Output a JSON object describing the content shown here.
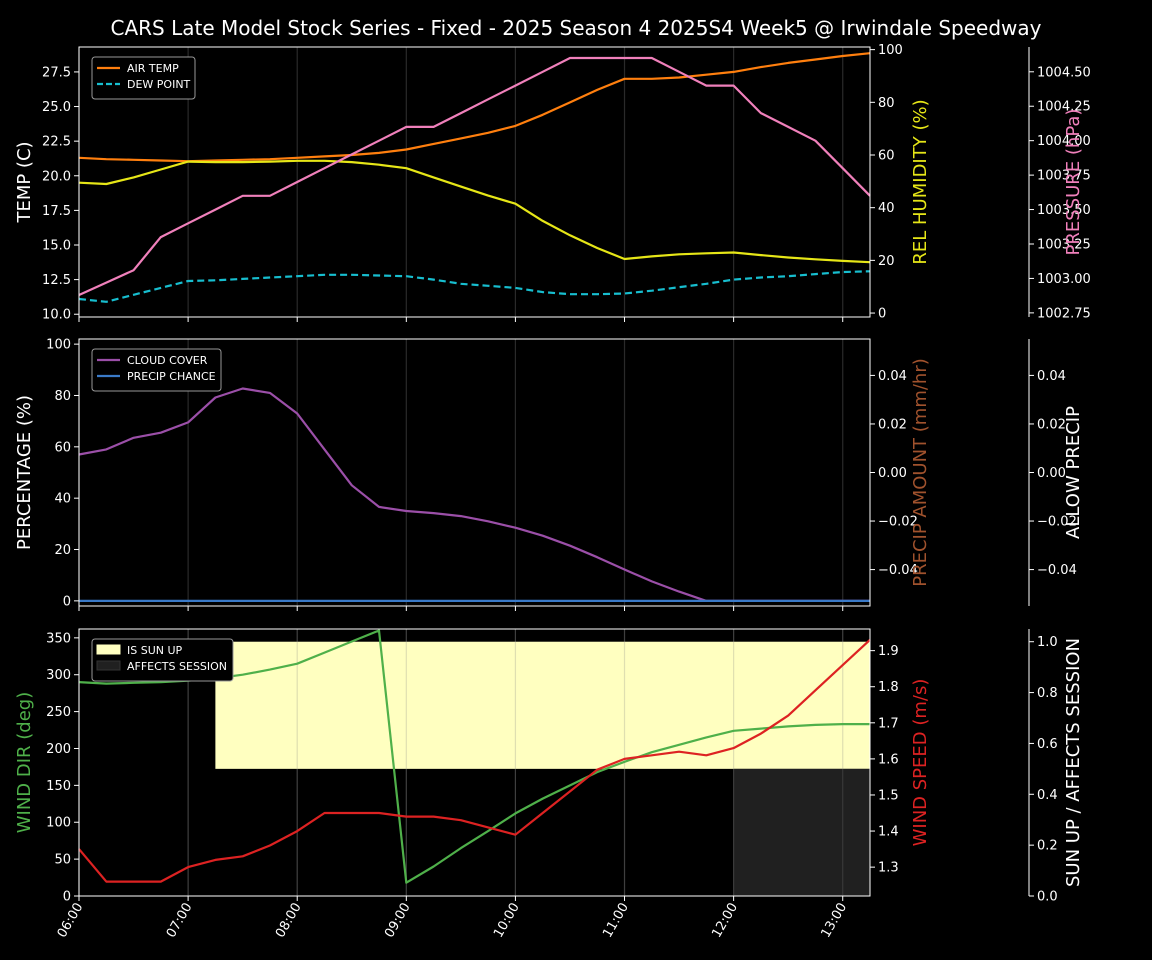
{
  "chart_data": [
    {
      "type": "line",
      "title": "CARS Late Model Stock Series - Fixed - 2025 Season 4 2025S4 Week5 @ Irwindale Speedway",
      "x_ticks": [
        "06:00",
        "07:00",
        "08:00",
        "09:00",
        "10:00",
        "11:00",
        "12:00",
        "13:00"
      ],
      "x_range": [
        "06:00",
        "13:15"
      ],
      "grid": "vertical-hourly",
      "legend_position": "top-left",
      "axes": [
        {
          "id": "temp",
          "label": "TEMP (C)",
          "side": "left",
          "color": "#ffffff",
          "range": [
            9.8,
            29.3
          ],
          "ticks": [
            "10.0",
            "12.5",
            "15.0",
            "17.5",
            "20.0",
            "22.5",
            "25.0",
            "27.5"
          ]
        },
        {
          "id": "rh",
          "label": "REL HUMIDITY (%)",
          "side": "right",
          "color": "#e6e617",
          "range": [
            -1.5,
            101
          ],
          "ticks": [
            "0",
            "20",
            "40",
            "60",
            "80",
            "100"
          ]
        },
        {
          "id": "pres",
          "label": "PRESSURE (hPa)",
          "side": "right-outer",
          "color": "#f080bb",
          "range": [
            1002.72,
            1004.68
          ],
          "ticks": [
            "1002.75",
            "1003.00",
            "1003.25",
            "1003.50",
            "1003.75",
            "1004.00",
            "1004.25",
            "1004.50"
          ]
        }
      ],
      "series": [
        {
          "name": "AIR TEMP",
          "axis": "temp",
          "color": "#ff7f0e",
          "style": "solid",
          "legend": true,
          "x": [
            "06:00",
            "06:15",
            "06:30",
            "06:45",
            "07:00",
            "07:15",
            "07:30",
            "07:45",
            "08:00",
            "08:15",
            "08:30",
            "08:45",
            "09:00",
            "09:15",
            "09:30",
            "09:45",
            "10:00",
            "10:15",
            "10:30",
            "10:45",
            "11:00",
            "11:15",
            "11:30",
            "11:45",
            "12:00",
            "12:15",
            "12:30",
            "12:45",
            "13:00",
            "13:15"
          ],
          "y": [
            21.3,
            21.2,
            21.15,
            21.1,
            21.05,
            21.1,
            21.15,
            21.2,
            21.3,
            21.4,
            21.5,
            21.65,
            21.9,
            22.3,
            22.7,
            23.1,
            23.6,
            24.4,
            25.3,
            26.2,
            27.0,
            27.0,
            27.1,
            27.3,
            27.5,
            27.85,
            28.15,
            28.4,
            28.65,
            28.85
          ]
        },
        {
          "name": "DEW POINT",
          "axis": "temp",
          "color": "#17becf",
          "style": "dashed",
          "legend": true,
          "x": [
            "06:00",
            "06:15",
            "06:30",
            "06:45",
            "07:00",
            "07:15",
            "07:30",
            "07:45",
            "08:00",
            "08:15",
            "08:30",
            "08:45",
            "09:00",
            "09:15",
            "09:30",
            "09:45",
            "10:00",
            "10:15",
            "10:30",
            "10:45",
            "11:00",
            "11:15",
            "11:30",
            "11:45",
            "12:00",
            "12:15",
            "12:30",
            "12:45",
            "13:00",
            "13:15"
          ],
          "y": [
            11.1,
            10.9,
            11.4,
            11.9,
            12.4,
            12.45,
            12.55,
            12.65,
            12.75,
            12.85,
            12.85,
            12.8,
            12.75,
            12.5,
            12.2,
            12.05,
            11.9,
            11.6,
            11.45,
            11.45,
            11.5,
            11.7,
            11.95,
            12.2,
            12.5,
            12.65,
            12.75,
            12.9,
            13.05,
            13.1
          ]
        },
        {
          "name": "REL HUMIDITY",
          "axis": "rh",
          "color": "#e6e617",
          "style": "solid",
          "legend": false,
          "x": [
            "06:00",
            "06:15",
            "06:30",
            "06:45",
            "07:00",
            "07:15",
            "07:30",
            "07:45",
            "08:00",
            "08:15",
            "08:30",
            "08:45",
            "09:00",
            "09:15",
            "09:30",
            "09:45",
            "10:00",
            "10:15",
            "10:30",
            "10:45",
            "11:00",
            "11:15",
            "11:30",
            "11:45",
            "12:00",
            "12:15",
            "12:30",
            "12:45",
            "13:00",
            "13:15"
          ],
          "y": [
            49.5,
            49,
            51.5,
            54.5,
            57.5,
            57.3,
            57.3,
            57.5,
            57.8,
            57.8,
            57.3,
            56.3,
            55,
            51.5,
            48,
            44.6,
            41.5,
            35,
            29.5,
            24.7,
            20.5,
            21.5,
            22.3,
            22.7,
            23,
            22,
            21.1,
            20.4,
            19.8,
            19.3
          ]
        },
        {
          "name": "PRESSURE",
          "axis": "pres",
          "color": "#f080bb",
          "style": "solid",
          "legend": false,
          "x": [
            "06:00",
            "06:15",
            "06:30",
            "06:45",
            "07:00",
            "07:15",
            "07:30",
            "07:45",
            "08:00",
            "08:15",
            "08:30",
            "08:45",
            "09:00",
            "09:15",
            "09:30",
            "09:45",
            "10:00",
            "10:15",
            "10:30",
            "10:45",
            "11:00",
            "11:15",
            "11:30",
            "11:45",
            "12:00",
            "12:15",
            "12:30",
            "12:45",
            "13:00",
            "13:15"
          ],
          "y": [
            1002.88,
            1002.97,
            1003.06,
            1003.3,
            1003.4,
            1003.5,
            1003.6,
            1003.6,
            1003.7,
            1003.8,
            1003.9,
            1004.0,
            1004.1,
            1004.1,
            1004.2,
            1004.3,
            1004.4,
            1004.5,
            1004.6,
            1004.6,
            1004.6,
            1004.6,
            1004.5,
            1004.4,
            1004.4,
            1004.2,
            1004.1,
            1004.0,
            1003.8,
            1003.6
          ]
        }
      ]
    },
    {
      "type": "line",
      "x_range": [
        "06:00",
        "13:15"
      ],
      "legend_position": "top-left",
      "axes": [
        {
          "id": "pct",
          "label": "PERCENTAGE (%)",
          "side": "left",
          "color": "#ffffff",
          "range": [
            -2,
            102
          ],
          "ticks": [
            "0",
            "20",
            "40",
            "60",
            "80",
            "100"
          ]
        },
        {
          "id": "precip",
          "label": "PRECIP AMOUNT (mm/hr)",
          "side": "right",
          "color": "#a0522d",
          "range": [
            -0.055,
            0.055
          ],
          "ticks": [
            "−0.04",
            "−0.02",
            "0.00",
            "0.02",
            "0.04"
          ]
        },
        {
          "id": "allow",
          "label": "ALLOW PRECIP",
          "side": "right-outer",
          "color": "#ffffff",
          "range": [
            -0.055,
            0.055
          ],
          "ticks": [
            "−0.04",
            "−0.02",
            "0.00",
            "0.02",
            "0.04"
          ]
        }
      ],
      "series": [
        {
          "name": "CLOUD COVER",
          "axis": "pct",
          "color": "#9b4fa8",
          "style": "solid",
          "legend": true,
          "x": [
            "06:00",
            "06:15",
            "06:30",
            "06:45",
            "07:00",
            "07:15",
            "07:30",
            "07:45",
            "08:00",
            "08:15",
            "08:30",
            "08:45",
            "09:00",
            "09:15",
            "09:30",
            "09:45",
            "10:00",
            "10:15",
            "10:30",
            "10:45",
            "11:00",
            "11:15",
            "11:30",
            "11:45",
            "12:00",
            "12:15",
            "12:30",
            "12:45",
            "13:00",
            "13:15"
          ],
          "y": [
            57,
            59,
            63.5,
            65.5,
            69.5,
            79.2,
            82.7,
            81,
            73,
            59,
            45,
            36.6,
            35,
            34.2,
            33,
            31,
            28.5,
            25.4,
            21.5,
            17,
            12.2,
            7.6,
            3.6,
            0,
            0,
            0,
            0,
            0,
            0,
            0
          ]
        },
        {
          "name": "PRECIP CHANCE",
          "axis": "pct",
          "color": "#3a7ac8",
          "style": "solid",
          "legend": true,
          "x": [
            "06:00",
            "13:15"
          ],
          "y": [
            0,
            0
          ]
        }
      ]
    },
    {
      "type": "line",
      "x_range": [
        "06:00",
        "13:15"
      ],
      "x_ticks": [
        "06:00",
        "07:00",
        "08:00",
        "09:00",
        "10:00",
        "11:00",
        "12:00",
        "13:00"
      ],
      "legend_position": "top-left",
      "axes": [
        {
          "id": "dir",
          "label": "WIND DIR (deg)",
          "side": "left",
          "color": "#4fb04a",
          "range": [
            0,
            362
          ],
          "ticks": [
            "0",
            "50",
            "100",
            "150",
            "200",
            "250",
            "300",
            "350"
          ]
        },
        {
          "id": "spd",
          "label": "WIND SPEED (m/s)",
          "side": "right",
          "color": "#dd2222",
          "range": [
            1.22,
            1.96
          ],
          "ticks": [
            "1.3",
            "1.4",
            "1.5",
            "1.6",
            "1.7",
            "1.8",
            "1.9"
          ]
        },
        {
          "id": "sun",
          "label": "SUN UP / AFFECTS SESSION",
          "side": "right-outer",
          "color": "#ffffff",
          "range": [
            0,
            1.05
          ],
          "ticks": [
            "0.0",
            "0.2",
            "0.4",
            "0.6",
            "0.8",
            "1.0"
          ]
        }
      ],
      "areas": [
        {
          "name": "IS SUN UP",
          "color": "#ffffc0",
          "x": [
            "07:15",
            "13:15"
          ],
          "value_range": [
            0.5,
            1.0
          ],
          "legend": true
        },
        {
          "name": "AFFECTS SESSION",
          "color": "#202020",
          "x": [
            "12:00",
            "13:15"
          ],
          "value_range": [
            0,
            0.5
          ],
          "legend": true
        }
      ],
      "series": [
        {
          "name": "WIND DIR",
          "axis": "dir",
          "color": "#4fb04a",
          "style": "solid",
          "legend": false,
          "x": [
            "06:00",
            "06:15",
            "06:30",
            "06:45",
            "07:00",
            "07:15",
            "07:30",
            "07:45",
            "08:00",
            "08:15",
            "08:30",
            "08:45",
            "09:00",
            "09:15",
            "09:30",
            "09:45",
            "10:00",
            "10:15",
            "10:30",
            "10:45",
            "11:00",
            "11:15",
            "11:30",
            "11:45",
            "12:00",
            "12:15",
            "12:30",
            "12:45",
            "13:00",
            "13:15"
          ],
          "y": [
            290,
            288,
            289,
            290,
            292,
            295,
            300,
            307,
            315,
            330,
            345,
            360,
            18,
            40,
            65,
            88,
            112,
            132,
            150,
            168,
            182,
            195,
            205,
            215,
            224,
            227,
            230,
            232,
            233,
            233
          ]
        },
        {
          "name": "WIND SPEED",
          "axis": "spd",
          "color": "#dd2222",
          "style": "solid",
          "legend": false,
          "x": [
            "06:00",
            "06:15",
            "06:30",
            "06:45",
            "07:00",
            "07:15",
            "07:30",
            "07:45",
            "08:00",
            "08:15",
            "08:30",
            "08:45",
            "09:00",
            "09:15",
            "09:30",
            "09:45",
            "10:00",
            "10:15",
            "10:30",
            "10:45",
            "11:00",
            "11:15",
            "11:30",
            "11:45",
            "12:00",
            "12:15",
            "12:30",
            "12:45",
            "13:00",
            "13:15"
          ],
          "y": [
            1.35,
            1.26,
            1.26,
            1.26,
            1.3,
            1.32,
            1.33,
            1.36,
            1.4,
            1.45,
            1.45,
            1.45,
            1.44,
            1.44,
            1.43,
            1.41,
            1.39,
            1.45,
            1.51,
            1.57,
            1.6,
            1.61,
            1.62,
            1.61,
            1.63,
            1.67,
            1.72,
            1.79,
            1.86,
            1.93
          ]
        }
      ]
    }
  ]
}
